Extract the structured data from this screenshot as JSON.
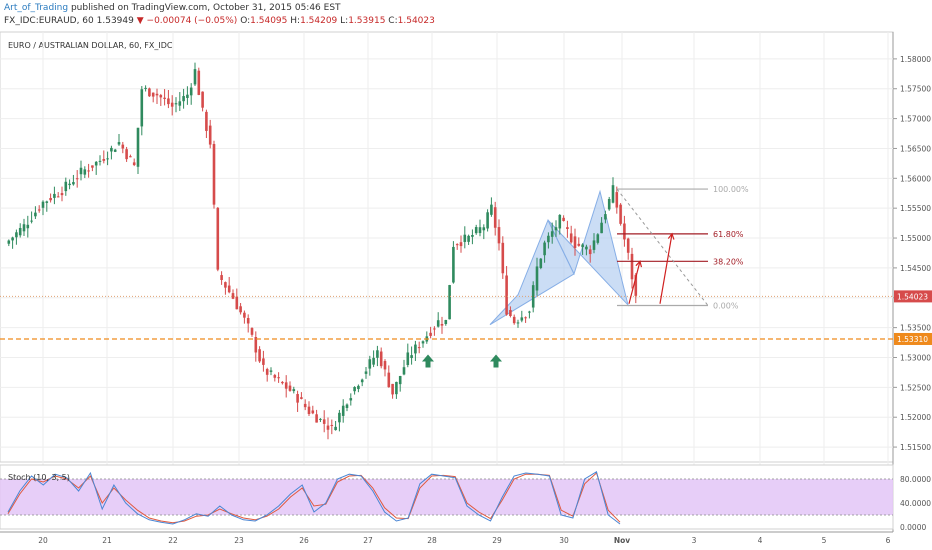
{
  "header": {
    "author": "Art_of_Trading",
    "published": "published on TradingView.com, October 31, 2015 05:46 EST",
    "symbol": "FX_IDC:EURAUD, 60",
    "last": "1.53949",
    "change_arrow": "▼",
    "change": "−0.00074 (−0.05%)",
    "o_label": "O:",
    "o": "1.54095",
    "h_label": "H:",
    "h": "1.54209",
    "l_label": "L:",
    "l": "1.53915",
    "c_label": "C:",
    "c": "1.54023"
  },
  "chart_title": "EURO / AUSTRALIAN DOLLAR, 60, FX_IDC",
  "colors": {
    "up": "#2f8a5e",
    "down": "#d64b4b",
    "pattern": "#a9c6ef",
    "fib": "#a21d25",
    "support": "#ef8a1c",
    "stoch_bg": "#e3c6f7",
    "stoch_k": "#4a86d4",
    "stoch_d": "#e0593f"
  },
  "chart_data": {
    "type": "candlestick",
    "price_ticks": [
      "1.58000",
      "1.57500",
      "1.57000",
      "1.56500",
      "1.56000",
      "1.55500",
      "1.55000",
      "1.54500",
      "1.54000",
      "1.53500",
      "1.53000",
      "1.52500",
      "1.52000",
      "1.51500"
    ],
    "ylim": [
      1.5125,
      1.5845
    ],
    "x_ticks": [
      "20",
      "21",
      "22",
      "23",
      "26",
      "27",
      "28",
      "29",
      "30",
      "Nov",
      "3",
      "4",
      "5",
      "6"
    ],
    "current_price": "1.54023",
    "support_level": "1.53310",
    "fib_labels": [
      "100.00%",
      "61.80%",
      "38.20%",
      "0.00%"
    ],
    "fib_prices": [
      1.5582,
      1.5507,
      1.5461,
      1.5387
    ],
    "stoch": {
      "label": "Stoch (10, 3, 5)",
      "ticks": [
        "80.0000",
        "40.0000",
        "0.0000"
      ],
      "ylim": [
        0,
        100
      ]
    },
    "arrows": [
      "up-arrow",
      "up-arrow"
    ],
    "swing_path": [
      [
        0,
        1.549
      ],
      [
        5,
        1.552
      ],
      [
        10,
        1.556
      ],
      [
        15,
        1.558
      ],
      [
        20,
        1.561
      ],
      [
        25,
        1.563
      ],
      [
        30,
        1.566
      ],
      [
        34,
        1.562
      ],
      [
        36,
        1.575
      ],
      [
        40,
        1.574
      ],
      [
        44,
        1.572
      ],
      [
        48,
        1.574
      ],
      [
        50,
        1.578
      ],
      [
        52,
        1.571
      ],
      [
        54,
        1.566
      ],
      [
        56,
        1.544
      ],
      [
        60,
        1.54
      ],
      [
        64,
        1.535
      ],
      [
        68,
        1.528
      ],
      [
        72,
        1.526
      ],
      [
        76,
        1.524
      ],
      [
        80,
        1.521
      ],
      [
        84,
        1.519
      ],
      [
        86,
        1.518
      ],
      [
        90,
        1.523
      ],
      [
        94,
        1.527
      ],
      [
        98,
        1.531
      ],
      [
        102,
        1.524
      ],
      [
        106,
        1.53
      ],
      [
        110,
        1.533
      ],
      [
        114,
        1.536
      ],
      [
        116,
        1.536
      ],
      [
        118,
        1.549
      ],
      [
        122,
        1.55
      ],
      [
        126,
        1.552
      ],
      [
        128,
        1.555
      ],
      [
        130,
        1.549
      ],
      [
        132,
        1.538
      ],
      [
        134,
        1.536
      ],
      [
        138,
        1.538
      ],
      [
        140,
        1.545
      ],
      [
        142,
        1.549
      ],
      [
        146,
        1.553
      ],
      [
        150,
        1.549
      ],
      [
        154,
        1.548
      ],
      [
        156,
        1.551
      ],
      [
        160,
        1.558
      ],
      [
        164,
        1.547
      ],
      [
        166,
        1.54
      ]
    ],
    "stoch_k": [
      25,
      60,
      85,
      70,
      88,
      82,
      60,
      90,
      30,
      70,
      40,
      22,
      12,
      8,
      5,
      12,
      22,
      18,
      35,
      20,
      12,
      10,
      20,
      35,
      55,
      70,
      25,
      40,
      80,
      88,
      85,
      60,
      25,
      10,
      15,
      72,
      88,
      85,
      82,
      35,
      20,
      10,
      50,
      85,
      90,
      88,
      85,
      20,
      15,
      80,
      92,
      20,
      5
    ],
    "stoch_d": [
      22,
      55,
      80,
      75,
      85,
      80,
      65,
      85,
      40,
      65,
      45,
      28,
      15,
      10,
      7,
      10,
      18,
      20,
      30,
      22,
      15,
      12,
      18,
      30,
      50,
      65,
      35,
      38,
      75,
      85,
      86,
      65,
      32,
      15,
      14,
      65,
      85,
      86,
      84,
      40,
      25,
      14,
      45,
      80,
      88,
      88,
      86,
      28,
      18,
      72,
      90,
      28,
      8
    ]
  }
}
